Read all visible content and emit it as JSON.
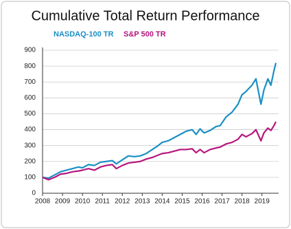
{
  "chart_data": {
    "type": "line",
    "title": "Cumulative Total Return Performance",
    "x": [
      2008.0,
      2008.3,
      2008.6,
      2008.9,
      2009.2,
      2009.5,
      2009.8,
      2010.0,
      2010.3,
      2010.6,
      2010.9,
      2011.2,
      2011.5,
      2011.7,
      2012.0,
      2012.3,
      2012.6,
      2012.9,
      2013.2,
      2013.5,
      2013.8,
      2014.0,
      2014.3,
      2014.6,
      2014.9,
      2015.2,
      2015.5,
      2015.7,
      2015.9,
      2016.1,
      2016.4,
      2016.7,
      2016.9,
      2017.2,
      2017.5,
      2017.8,
      2018.0,
      2018.2,
      2018.5,
      2018.7,
      2018.95,
      2019.1,
      2019.3,
      2019.45,
      2019.6,
      2019.7
    ],
    "series": [
      {
        "name": "NASDAQ-100 TR",
        "color": "#1a8fc4",
        "values": [
          100,
          95,
          115,
          135,
          145,
          155,
          165,
          160,
          180,
          175,
          195,
          200,
          205,
          185,
          210,
          235,
          230,
          235,
          250,
          275,
          300,
          320,
          330,
          350,
          370,
          390,
          400,
          370,
          405,
          380,
          395,
          420,
          425,
          480,
          510,
          560,
          620,
          640,
          680,
          720,
          560,
          650,
          720,
          680,
          770,
          820
        ]
      },
      {
        "name": "S&P 500 TR",
        "color": "#b5157e",
        "values": [
          100,
          85,
          100,
          120,
          125,
          135,
          140,
          145,
          155,
          145,
          165,
          175,
          180,
          155,
          175,
          190,
          195,
          200,
          215,
          225,
          240,
          250,
          255,
          265,
          275,
          275,
          280,
          255,
          275,
          255,
          275,
          285,
          290,
          310,
          320,
          340,
          370,
          355,
          375,
          400,
          330,
          380,
          410,
          395,
          425,
          450
        ]
      }
    ],
    "xlim": [
      2008,
      2019.7
    ],
    "xticks": [
      2008,
      2009,
      2010,
      2011,
      2012,
      2013,
      2014,
      2015,
      2016,
      2017,
      2018,
      2019
    ],
    "ylim": [
      0,
      900
    ],
    "yticks": [
      0,
      100,
      200,
      300,
      400,
      500,
      600,
      700,
      800,
      900
    ],
    "grid": true
  }
}
